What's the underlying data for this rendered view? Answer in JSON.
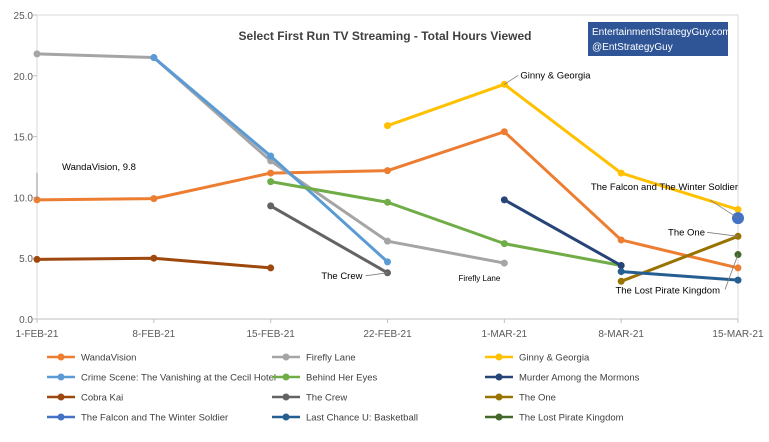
{
  "chart_data": {
    "type": "line",
    "title": "Select First Run TV Streaming - Total Hours Viewed",
    "xlabel": "",
    "ylabel": "",
    "categories": [
      "1-FEB-21",
      "8-FEB-21",
      "15-FEB-21",
      "22-FEB-21",
      "1-MAR-21",
      "8-MAR-21",
      "15-MAR-21"
    ],
    "ylim": [
      0,
      25
    ],
    "yticks": [
      "0.0",
      "5.0",
      "10.0",
      "15.0",
      "20.0",
      "25.0"
    ],
    "grid": false,
    "legend_position": "bottom",
    "series": [
      {
        "name": "WandaVision",
        "color": "#ED7D31",
        "values": [
          9.8,
          9.9,
          12.0,
          12.2,
          15.4,
          6.5,
          4.2
        ]
      },
      {
        "name": "Firefly Lane",
        "color": "#A5A5A5",
        "values": [
          21.8,
          21.5,
          13.0,
          6.4,
          4.6,
          null,
          null
        ]
      },
      {
        "name": "Ginny & Georgia",
        "color": "#FFC000",
        "values": [
          null,
          null,
          null,
          15.9,
          19.3,
          12.0,
          9.0
        ]
      },
      {
        "name": "Crime Scene: The Vanishing at the Cecil Hotel",
        "color": "#5B9BD5",
        "values": [
          null,
          21.5,
          13.4,
          4.7,
          null,
          null,
          null
        ]
      },
      {
        "name": "Behind Her Eyes",
        "color": "#70AD47",
        "values": [
          null,
          null,
          11.3,
          9.6,
          6.2,
          4.4,
          null
        ]
      },
      {
        "name": "Murder Among the Mormons",
        "color": "#264478",
        "values": [
          null,
          null,
          null,
          null,
          9.8,
          4.4,
          null
        ]
      },
      {
        "name": "Cobra Kai",
        "color": "#9E480E",
        "values": [
          4.9,
          5.0,
          4.2,
          null,
          null,
          null,
          null
        ]
      },
      {
        "name": "The Crew",
        "color": "#636363",
        "values": [
          null,
          null,
          9.3,
          3.8,
          null,
          null,
          null
        ]
      },
      {
        "name": "The One",
        "color": "#997300",
        "values": [
          null,
          null,
          null,
          null,
          null,
          3.1,
          6.8
        ]
      },
      {
        "name": "The Falcon and The Winter Soldier",
        "color": "#4472C4",
        "values": [
          null,
          null,
          null,
          null,
          null,
          null,
          8.3
        ]
      },
      {
        "name": "Last Chance U: Basketball",
        "color": "#255E91",
        "values": [
          null,
          null,
          null,
          null,
          null,
          3.9,
          3.2
        ]
      },
      {
        "name": "The Lost Pirate Kingdom",
        "color": "#43682B",
        "values": [
          null,
          null,
          null,
          null,
          null,
          null,
          5.3
        ]
      }
    ],
    "annotations": [
      {
        "text": "WandaVision, 9.8",
        "series": 0,
        "index": 0
      },
      {
        "text": "Ginny & Georgia",
        "series": 2,
        "index": 4
      },
      {
        "text": "The Falcon and The Winter Soldier",
        "series": 9,
        "index": 6
      },
      {
        "text": "The One",
        "series": 8,
        "index": 6
      },
      {
        "text": "The Crew",
        "series": 7,
        "index": 3
      },
      {
        "text": "Firefly Lane",
        "series": 1,
        "index": 4
      },
      {
        "text": "The Lost Pirate Kingdom",
        "series": 11,
        "index": 6
      }
    ],
    "credit": {
      "line1": "EntertainmentStrategyGuy.com",
      "line2": "@EntStrategyGuy",
      "background": "#2F5597"
    }
  }
}
